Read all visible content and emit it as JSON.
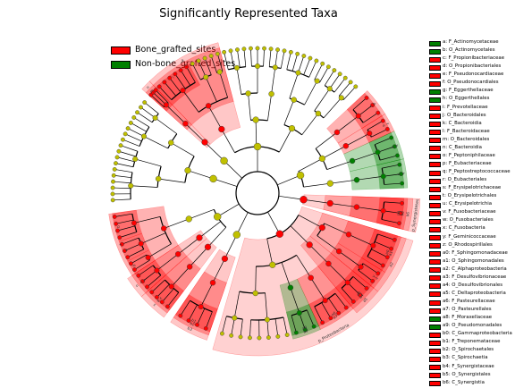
{
  "title": "Significantly Represented Taxa",
  "colors": {
    "bone": "#ff0000",
    "nonbone": "#008000",
    "node_default": "#c0c000",
    "bone_band": "#ff0000",
    "nonbone_band": "#008000"
  },
  "legend": [
    {
      "label": "Bone_grafted_sites",
      "color": "#ff0000"
    },
    {
      "label": "Non-bone_grafted_sites",
      "color": "#008000"
    }
  ],
  "key_entries": [
    {
      "label": "a: F_Actinomycetaceae",
      "color": "#008000"
    },
    {
      "label": "b: O_Actinomycetales",
      "color": "#008000"
    },
    {
      "label": "c: F_Propionibacteriaceae",
      "color": "#ff0000"
    },
    {
      "label": "d: O_Propionibacteriales",
      "color": "#ff0000"
    },
    {
      "label": "e: F_Pseudonocardiaceae",
      "color": "#ff0000"
    },
    {
      "label": "f: O_Pseudonocardiales",
      "color": "#ff0000"
    },
    {
      "label": "g: F_Eggerthellaceae",
      "color": "#008000"
    },
    {
      "label": "h: O_Eggerthellales",
      "color": "#008000"
    },
    {
      "label": "i: F_Prevotellaceae",
      "color": "#ff0000"
    },
    {
      "label": "j: O_Bacteroidales",
      "color": "#ff0000"
    },
    {
      "label": "k: C_Bacteroidia",
      "color": "#ff0000"
    },
    {
      "label": "l: F_Bacteroidaceae",
      "color": "#ff0000"
    },
    {
      "label": "m: O_Bacteroidales",
      "color": "#ff0000"
    },
    {
      "label": "n: C_Bacteroidia",
      "color": "#ff0000"
    },
    {
      "label": "o: F_Peptoniphilaceae",
      "color": "#ff0000"
    },
    {
      "label": "p: F_Eubacteriaceae",
      "color": "#ff0000"
    },
    {
      "label": "q: F_Peptostreptococcaceae",
      "color": "#ff0000"
    },
    {
      "label": "r: O_Eubacteriales",
      "color": "#ff0000"
    },
    {
      "label": "s: F_Erysipelotrichaceae",
      "color": "#ff0000"
    },
    {
      "label": "t: O_Erysipelotrichales",
      "color": "#ff0000"
    },
    {
      "label": "u: C_Erysipelotrichia",
      "color": "#ff0000"
    },
    {
      "label": "v: F_Fusobacteriaceae",
      "color": "#ff0000"
    },
    {
      "label": "w: O_Fusobacteriales",
      "color": "#ff0000"
    },
    {
      "label": "x: C_Fusobacteria",
      "color": "#ff0000"
    },
    {
      "label": "y: F_Geminicoccaceae",
      "color": "#ff0000"
    },
    {
      "label": "z: O_Rhodospirillales",
      "color": "#ff0000"
    },
    {
      "label": "a0: F_Sphingomonadaceae",
      "color": "#ff0000"
    },
    {
      "label": "a1: O_Sphingomonadales",
      "color": "#ff0000"
    },
    {
      "label": "a2: C_Alphaproteobacteria",
      "color": "#ff0000"
    },
    {
      "label": "a3: F_Desulfovibrionaceae",
      "color": "#ff0000"
    },
    {
      "label": "a4: O_Desulfovibrionales",
      "color": "#ff0000"
    },
    {
      "label": "a5: C_Deltaproteobacteria",
      "color": "#ff0000"
    },
    {
      "label": "a6: F_Pasteurellaceae",
      "color": "#ff0000"
    },
    {
      "label": "a7: O_Pasteurellales",
      "color": "#ff0000"
    },
    {
      "label": "a8: F_Moraxellaceae",
      "color": "#008000"
    },
    {
      "label": "a9: O_Pseudomonadales",
      "color": "#008000"
    },
    {
      "label": "b0: C_Gammaproteobacteria",
      "color": "#ff0000"
    },
    {
      "label": "b1: F_Treponemataceae",
      "color": "#ff0000"
    },
    {
      "label": "b2: O_Spirochaetales",
      "color": "#ff0000"
    },
    {
      "label": "b3: C_Spirochaetia",
      "color": "#ff0000"
    },
    {
      "label": "b4: F_Synergistaceae",
      "color": "#ff0000"
    },
    {
      "label": "b5: O_Synergistales",
      "color": "#ff0000"
    },
    {
      "label": "b6: C_Synergistia",
      "color": "#ff0000"
    }
  ],
  "clade_band_letters": [
    "k",
    "j",
    "i",
    "l",
    "m",
    "n",
    "a",
    "b",
    "g",
    "f",
    "e",
    "d",
    "c",
    "x",
    "w",
    "u",
    "t",
    "s",
    "r",
    "p",
    "o",
    "z",
    "y",
    "a2",
    "a1",
    "a0",
    "b3",
    "b2",
    "b1",
    "a5",
    "a4",
    "a3",
    "b6",
    "b5",
    "b4",
    "a8",
    "a7",
    "a6"
  ],
  "outer_labels": [
    "p_Synergistetes",
    "p_Proteobacteria"
  ]
}
